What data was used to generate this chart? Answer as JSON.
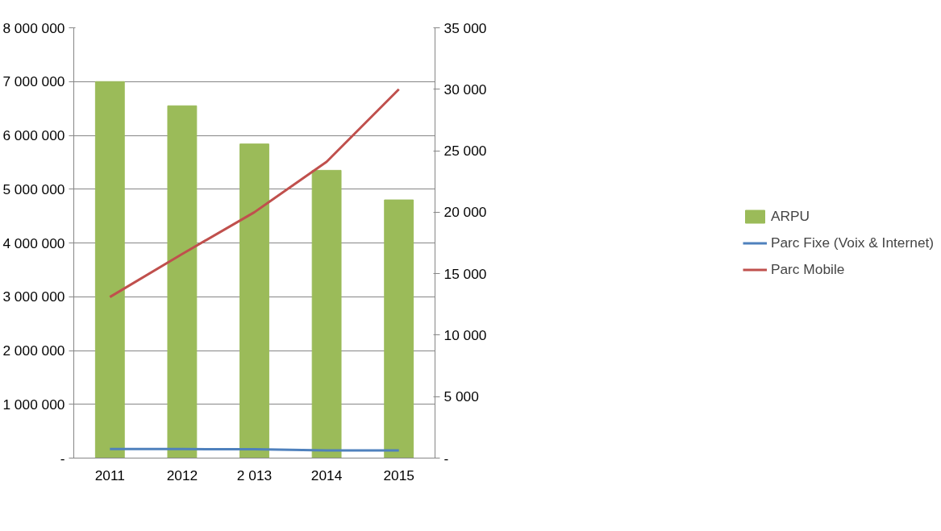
{
  "chart_data": {
    "type": "bar",
    "categories": [
      "2011",
      "2012",
      "2 013",
      "2014",
      "2015"
    ],
    "series": [
      {
        "name": "ARPU",
        "color": "#9bbb59",
        "values": [
          7000000,
          6550000,
          5840000,
          5350000,
          4800000
        ]
      },
      {
        "name": "Parc Fixe (Voix & Internet)",
        "type": "line",
        "axis": "y2",
        "color": "#4f81bd",
        "values": [
          730,
          730,
          720,
          630,
          630
        ]
      },
      {
        "name": "Parc Mobile",
        "type": "line",
        "axis": "y2",
        "color": "#c0504d",
        "values": [
          13100,
          16600,
          20000,
          24100,
          30000
        ]
      }
    ],
    "ylim": [
      0,
      8000000
    ],
    "yticks": [
      {
        "value": 0,
        "label": "-"
      },
      {
        "value": 1000000,
        "label": "1 000 000"
      },
      {
        "value": 2000000,
        "label": "2 000 000"
      },
      {
        "value": 3000000,
        "label": "3 000 000"
      },
      {
        "value": 4000000,
        "label": "4 000 000"
      },
      {
        "value": 5000000,
        "label": "5 000 000"
      },
      {
        "value": 6000000,
        "label": "6 000 000"
      },
      {
        "value": 7000000,
        "label": "7 000 000"
      },
      {
        "value": 8000000,
        "label": "8 000 000"
      }
    ],
    "y2lim": [
      0,
      35000
    ],
    "y2ticks": [
      {
        "value": 0,
        "label": "-"
      },
      {
        "value": 5000,
        "label": "5 000"
      },
      {
        "value": 10000,
        "label": "10 000"
      },
      {
        "value": 15000,
        "label": "15 000"
      },
      {
        "value": 20000,
        "label": "20 000"
      },
      {
        "value": 25000,
        "label": "25 000"
      },
      {
        "value": 30000,
        "label": "30 000"
      },
      {
        "value": 35000,
        "label": "35 000"
      }
    ],
    "grid": "y",
    "legend": "right"
  }
}
